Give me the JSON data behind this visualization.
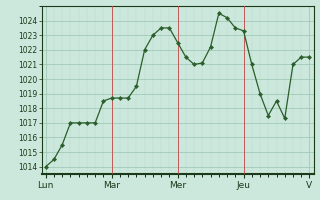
{
  "x": [
    0,
    1,
    2,
    3,
    4,
    5,
    6,
    7,
    8,
    9,
    10,
    11,
    12,
    13,
    14,
    15,
    16,
    17,
    18,
    19,
    20,
    21,
    22,
    23,
    24,
    25,
    26,
    27,
    28,
    29,
    30,
    31,
    32
  ],
  "y": [
    1014.0,
    1014.5,
    1015.5,
    1017.0,
    1017.0,
    1017.0,
    1017.0,
    1018.5,
    1018.7,
    1018.7,
    1018.7,
    1019.5,
    1022.0,
    1023.0,
    1023.5,
    1023.5,
    1022.5,
    1021.5,
    1021.0,
    1021.1,
    1022.2,
    1024.5,
    1024.2,
    1023.5,
    1023.3,
    1021.0,
    1019.0,
    1017.5,
    1018.5,
    1017.3,
    1021.0,
    1021.5,
    1021.5
  ],
  "ylim": [
    1013.5,
    1025.0
  ],
  "yticks": [
    1014,
    1015,
    1016,
    1017,
    1018,
    1019,
    1020,
    1021,
    1022,
    1023,
    1024
  ],
  "xlim": [
    -0.5,
    32.5
  ],
  "day_positions": [
    0,
    8,
    16,
    24,
    32
  ],
  "day_labels": [
    "Lun",
    "Mar",
    "Mer",
    "Jeu",
    "V"
  ],
  "line_color": "#2a5e2a",
  "marker_color": "#2a5e2a",
  "bg_color": "#cce8dc",
  "grid_major_color": "#99c4b0",
  "grid_minor_color": "#b8d9cb",
  "spine_color": "#1a3a1a",
  "tick_label_color": "#1a3a1a",
  "vline_color": "#cc4444",
  "vline_positions": [
    8,
    16,
    24
  ],
  "ytick_fontsize": 5.5,
  "xtick_fontsize": 6.5
}
